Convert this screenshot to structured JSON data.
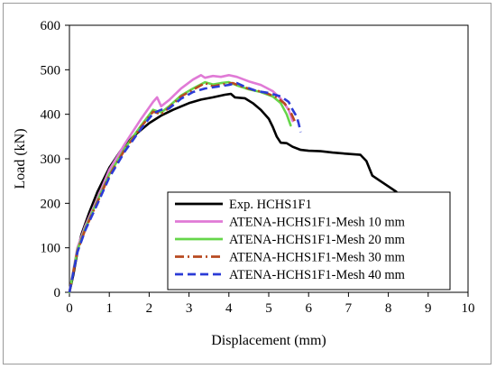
{
  "chart_data": {
    "type": "line",
    "title": "",
    "xlabel": "Displacement (mm)",
    "ylabel": "Load (kN)",
    "xlim": [
      0,
      10
    ],
    "ylim": [
      0,
      600
    ],
    "x_ticks": [
      "0",
      "1",
      "2",
      "3",
      "4",
      "5",
      "6",
      "7",
      "8",
      "9",
      "10"
    ],
    "y_ticks": [
      "0",
      "100",
      "200",
      "300",
      "400",
      "500",
      "600"
    ],
    "grid": false,
    "legend_position": "bottom-right",
    "series": [
      {
        "name": "Exp. HCHS1F1",
        "color": "#000000",
        "style": "solid",
        "points": [
          [
            0,
            0
          ],
          [
            0.1,
            40
          ],
          [
            0.2,
            90
          ],
          [
            0.3,
            130
          ],
          [
            0.5,
            180
          ],
          [
            0.7,
            225
          ],
          [
            1.0,
            280
          ],
          [
            1.3,
            320
          ],
          [
            1.6,
            350
          ],
          [
            2.0,
            380
          ],
          [
            2.3,
            397
          ],
          [
            2.6,
            410
          ],
          [
            3.0,
            425
          ],
          [
            3.3,
            433
          ],
          [
            3.6,
            438
          ],
          [
            3.9,
            444
          ],
          [
            4.05,
            446
          ],
          [
            4.15,
            438
          ],
          [
            4.4,
            436
          ],
          [
            4.6,
            425
          ],
          [
            4.8,
            410
          ],
          [
            5.0,
            390
          ],
          [
            5.1,
            372
          ],
          [
            5.2,
            350
          ],
          [
            5.3,
            336
          ],
          [
            5.45,
            335
          ],
          [
            5.6,
            327
          ],
          [
            5.8,
            320
          ],
          [
            6.0,
            318
          ],
          [
            6.3,
            317
          ],
          [
            6.6,
            314
          ],
          [
            7.0,
            311
          ],
          [
            7.3,
            309
          ],
          [
            7.45,
            295
          ],
          [
            7.6,
            262
          ],
          [
            7.8,
            250
          ],
          [
            8.0,
            238
          ],
          [
            8.2,
            226
          ]
        ]
      },
      {
        "name": "ATENA-HCHS1F1-Mesh 10 mm",
        "color": "#e07ad6",
        "style": "solid",
        "points": [
          [
            0,
            0
          ],
          [
            0.2,
            100
          ],
          [
            0.4,
            150
          ],
          [
            0.7,
            210
          ],
          [
            1.0,
            275
          ],
          [
            1.4,
            335
          ],
          [
            1.8,
            390
          ],
          [
            2.1,
            428
          ],
          [
            2.2,
            438
          ],
          [
            2.3,
            418
          ],
          [
            2.5,
            432
          ],
          [
            2.8,
            458
          ],
          [
            3.1,
            478
          ],
          [
            3.3,
            488
          ],
          [
            3.4,
            482
          ],
          [
            3.6,
            486
          ],
          [
            3.8,
            484
          ],
          [
            4.0,
            488
          ],
          [
            4.2,
            484
          ],
          [
            4.5,
            474
          ],
          [
            4.8,
            466
          ],
          [
            5.1,
            452
          ],
          [
            5.3,
            435
          ],
          [
            5.5,
            410
          ],
          [
            5.6,
            385
          ]
        ]
      },
      {
        "name": "ATENA-HCHS1F1-Mesh 20 mm",
        "color": "#66d64a",
        "style": "solid",
        "points": [
          [
            0,
            0
          ],
          [
            0.2,
            95
          ],
          [
            0.4,
            145
          ],
          [
            0.7,
            205
          ],
          [
            1.0,
            265
          ],
          [
            1.4,
            325
          ],
          [
            1.8,
            375
          ],
          [
            2.1,
            410
          ],
          [
            2.3,
            404
          ],
          [
            2.5,
            418
          ],
          [
            2.8,
            442
          ],
          [
            3.1,
            458
          ],
          [
            3.4,
            472
          ],
          [
            3.6,
            467
          ],
          [
            3.8,
            470
          ],
          [
            4.0,
            472
          ],
          [
            4.2,
            465
          ],
          [
            4.5,
            456
          ],
          [
            4.8,
            450
          ],
          [
            5.1,
            440
          ],
          [
            5.3,
            425
          ],
          [
            5.45,
            400
          ],
          [
            5.55,
            375
          ]
        ]
      },
      {
        "name": "ATENA-HCHS1F1-Mesh 30 mm",
        "color": "#b84a20",
        "style": "dashdot",
        "points": [
          [
            0,
            0
          ],
          [
            0.2,
            92
          ],
          [
            0.4,
            142
          ],
          [
            0.7,
            202
          ],
          [
            1.0,
            262
          ],
          [
            1.4,
            322
          ],
          [
            1.8,
            372
          ],
          [
            2.1,
            406
          ],
          [
            2.3,
            400
          ],
          [
            2.5,
            415
          ],
          [
            2.8,
            440
          ],
          [
            3.1,
            455
          ],
          [
            3.4,
            470
          ],
          [
            3.6,
            463
          ],
          [
            3.9,
            468
          ],
          [
            4.1,
            470
          ],
          [
            4.3,
            463
          ],
          [
            4.6,
            455
          ],
          [
            4.9,
            449
          ],
          [
            5.2,
            438
          ],
          [
            5.4,
            424
          ],
          [
            5.55,
            405
          ],
          [
            5.65,
            385
          ]
        ]
      },
      {
        "name": "ATENA-HCHS1F1-Mesh 40 mm",
        "color": "#2b3bd6",
        "style": "dashed",
        "points": [
          [
            0,
            0
          ],
          [
            0.2,
            90
          ],
          [
            0.4,
            140
          ],
          [
            0.7,
            198
          ],
          [
            1.0,
            258
          ],
          [
            1.4,
            318
          ],
          [
            1.8,
            368
          ],
          [
            2.1,
            402
          ],
          [
            2.3,
            410
          ],
          [
            2.5,
            413
          ],
          [
            2.8,
            435
          ],
          [
            3.1,
            450
          ],
          [
            3.4,
            458
          ],
          [
            3.7,
            462
          ],
          [
            4.0,
            466
          ],
          [
            4.2,
            470
          ],
          [
            4.4,
            462
          ],
          [
            4.7,
            452
          ],
          [
            5.0,
            448
          ],
          [
            5.3,
            440
          ],
          [
            5.5,
            428
          ],
          [
            5.6,
            410
          ],
          [
            5.7,
            395
          ],
          [
            5.75,
            380
          ],
          [
            5.8,
            360
          ]
        ]
      }
    ]
  }
}
